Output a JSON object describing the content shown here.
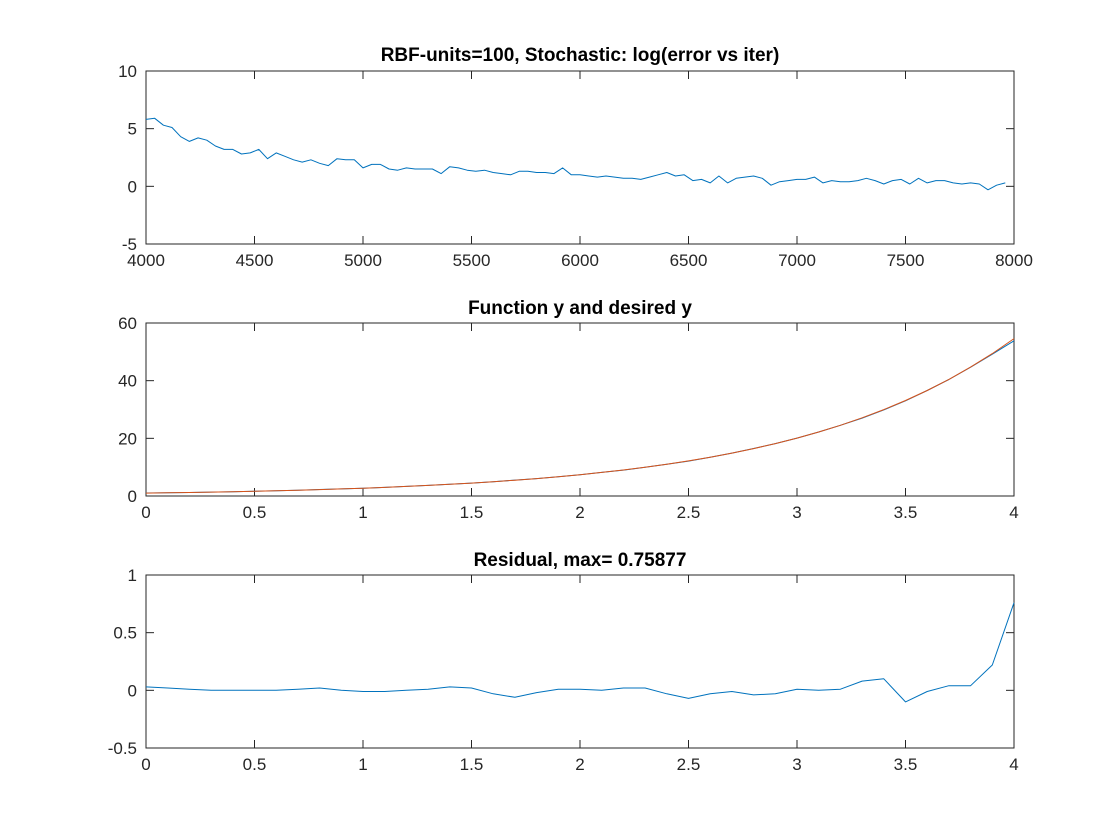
{
  "chart_data": [
    {
      "type": "line",
      "title": "RBF-units=100, Stochastic: log(error vs iter)",
      "xlabel": "",
      "ylabel": "",
      "xlim": [
        4000,
        8000
      ],
      "ylim": [
        -5,
        10
      ],
      "xticks": [
        4000,
        4500,
        5000,
        5500,
        6000,
        6500,
        7000,
        7500,
        8000
      ],
      "xtick_labels": [
        "4000",
        "4500",
        "5000",
        "5500",
        "6000",
        "6500",
        "7000",
        "7500",
        "8000"
      ],
      "yticks": [
        -5,
        0,
        5,
        10
      ],
      "ytick_labels": [
        "-5",
        "0",
        "5",
        "10"
      ],
      "grid": false,
      "series": [
        {
          "color": "#0072BD",
          "x": [
            4000,
            4040,
            4080,
            4120,
            4160,
            4200,
            4240,
            4280,
            4320,
            4360,
            4400,
            4440,
            4480,
            4520,
            4560,
            4600,
            4640,
            4680,
            4720,
            4760,
            4800,
            4840,
            4880,
            4920,
            4960,
            5000,
            5040,
            5080,
            5120,
            5160,
            5200,
            5240,
            5280,
            5320,
            5360,
            5400,
            5440,
            5480,
            5520,
            5560,
            5600,
            5640,
            5680,
            5720,
            5760,
            5800,
            5840,
            5880,
            5920,
            5960,
            6000,
            6040,
            6080,
            6120,
            6160,
            6200,
            6240,
            6280,
            6320,
            6360,
            6400,
            6440,
            6480,
            6520,
            6560,
            6600,
            6640,
            6680,
            6720,
            6760,
            6800,
            6840,
            6880,
            6920,
            6960,
            7000,
            7040,
            7080,
            7120,
            7160,
            7200,
            7240,
            7280,
            7320,
            7360,
            7400,
            7440,
            7480,
            7520,
            7560,
            7600,
            7640,
            7680,
            7720,
            7760,
            7800,
            7840,
            7880,
            7920,
            7960
          ],
          "values": [
            5.8,
            5.9,
            5.3,
            5.1,
            4.3,
            3.9,
            4.2,
            4.0,
            3.5,
            3.2,
            3.2,
            2.8,
            2.9,
            3.2,
            2.4,
            2.9,
            2.6,
            2.3,
            2.1,
            2.3,
            2.0,
            1.8,
            2.4,
            2.3,
            2.3,
            1.6,
            1.9,
            1.9,
            1.5,
            1.4,
            1.6,
            1.5,
            1.5,
            1.5,
            1.1,
            1.7,
            1.6,
            1.4,
            1.3,
            1.4,
            1.2,
            1.1,
            1.0,
            1.3,
            1.3,
            1.2,
            1.2,
            1.1,
            1.6,
            1.0,
            1.0,
            0.9,
            0.8,
            0.9,
            0.8,
            0.7,
            0.7,
            0.6,
            0.8,
            1.0,
            1.2,
            0.9,
            1.0,
            0.5,
            0.6,
            0.3,
            0.9,
            0.3,
            0.7,
            0.8,
            0.9,
            0.7,
            0.1,
            0.4,
            0.5,
            0.6,
            0.6,
            0.8,
            0.3,
            0.5,
            0.4,
            0.4,
            0.5,
            0.7,
            0.5,
            0.2,
            0.5,
            0.6,
            0.2,
            0.7,
            0.3,
            0.5,
            0.5,
            0.3,
            0.2,
            0.3,
            0.2,
            -0.3,
            0.1,
            0.3
          ]
        }
      ]
    },
    {
      "type": "line",
      "title": "Function y and desired y",
      "xlabel": "",
      "ylabel": "",
      "xlim": [
        0,
        4
      ],
      "ylim": [
        0,
        60
      ],
      "xticks": [
        0,
        0.5,
        1,
        1.5,
        2,
        2.5,
        3,
        3.5,
        4
      ],
      "xtick_labels": [
        "0",
        "0.5",
        "1",
        "1.5",
        "2",
        "2.5",
        "3",
        "3.5",
        "4"
      ],
      "yticks": [
        0,
        20,
        40,
        60
      ],
      "ytick_labels": [
        "0",
        "20",
        "40",
        "60"
      ],
      "grid": false,
      "series": [
        {
          "color": "#0072BD",
          "x": [
            0,
            0.1,
            0.2,
            0.3,
            0.4,
            0.5,
            0.6,
            0.7,
            0.8,
            0.9,
            1,
            1.1,
            1.2,
            1.3,
            1.4,
            1.5,
            1.6,
            1.7,
            1.8,
            1.9,
            2,
            2.1,
            2.2,
            2.3,
            2.4,
            2.5,
            2.6,
            2.7,
            2.8,
            2.9,
            3,
            3.1,
            3.2,
            3.3,
            3.4,
            3.5,
            3.6,
            3.7,
            3.8,
            3.9,
            4
          ],
          "values": [
            1.03,
            1.13,
            1.23,
            1.36,
            1.49,
            1.65,
            1.82,
            2.01,
            2.24,
            2.46,
            2.72,
            3.0,
            3.32,
            3.67,
            4.08,
            4.47,
            4.92,
            5.53,
            6.03,
            6.69,
            7.4,
            8.17,
            9.0,
            9.95,
            11.02,
            12.11,
            13.43,
            14.89,
            16.48,
            18.16,
            20.08,
            22.2,
            24.52,
            27.02,
            29.87,
            33.02,
            36.59,
            40.41,
            44.66,
            49.17,
            53.84
          ]
        },
        {
          "color": "#D95319",
          "x": [
            0,
            0.1,
            0.2,
            0.3,
            0.4,
            0.5,
            0.6,
            0.7,
            0.8,
            0.9,
            1,
            1.1,
            1.2,
            1.3,
            1.4,
            1.5,
            1.6,
            1.7,
            1.8,
            1.9,
            2,
            2.1,
            2.2,
            2.3,
            2.4,
            2.5,
            2.6,
            2.7,
            2.8,
            2.9,
            3,
            3.1,
            3.2,
            3.3,
            3.4,
            3.5,
            3.6,
            3.7,
            3.8,
            3.9,
            4
          ],
          "values": [
            1.0,
            1.11,
            1.22,
            1.35,
            1.49,
            1.65,
            1.82,
            2.01,
            2.23,
            2.46,
            2.72,
            3.0,
            3.32,
            3.67,
            4.06,
            4.48,
            4.95,
            5.47,
            6.05,
            6.69,
            7.39,
            8.17,
            9.03,
            9.97,
            11.02,
            12.18,
            13.46,
            14.88,
            16.44,
            18.17,
            20.09,
            22.2,
            24.53,
            27.11,
            29.96,
            33.12,
            36.6,
            40.45,
            44.7,
            49.4,
            54.6
          ]
        }
      ]
    },
    {
      "type": "line",
      "title": "Residual, max= 0.75877",
      "xlabel": "",
      "ylabel": "",
      "xlim": [
        0,
        4
      ],
      "ylim": [
        -0.5,
        1
      ],
      "xticks": [
        0,
        0.5,
        1,
        1.5,
        2,
        2.5,
        3,
        3.5,
        4
      ],
      "xtick_labels": [
        "0",
        "0.5",
        "1",
        "1.5",
        "2",
        "2.5",
        "3",
        "3.5",
        "4"
      ],
      "yticks": [
        -0.5,
        0,
        0.5,
        1
      ],
      "ytick_labels": [
        "-0.5",
        "0",
        "0.5",
        "1"
      ],
      "grid": false,
      "series": [
        {
          "color": "#0072BD",
          "x": [
            0,
            0.1,
            0.2,
            0.3,
            0.4,
            0.5,
            0.6,
            0.7,
            0.8,
            0.9,
            1,
            1.1,
            1.2,
            1.3,
            1.4,
            1.5,
            1.6,
            1.7,
            1.8,
            1.9,
            2,
            2.1,
            2.2,
            2.3,
            2.4,
            2.5,
            2.6,
            2.7,
            2.8,
            2.9,
            3,
            3.1,
            3.2,
            3.3,
            3.4,
            3.5,
            3.6,
            3.7,
            3.8,
            3.9,
            4
          ],
          "values": [
            0.03,
            0.02,
            0.01,
            0.0,
            0.0,
            0.0,
            0.0,
            0.01,
            0.02,
            0.0,
            -0.01,
            -0.01,
            0.0,
            0.01,
            0.03,
            0.02,
            -0.03,
            -0.06,
            -0.02,
            0.01,
            0.01,
            0.0,
            0.02,
            0.02,
            -0.03,
            -0.07,
            -0.03,
            -0.01,
            -0.04,
            -0.03,
            0.01,
            0.0,
            0.01,
            0.08,
            0.1,
            -0.1,
            -0.01,
            0.04,
            0.04,
            0.22,
            0.76
          ]
        }
      ]
    }
  ]
}
